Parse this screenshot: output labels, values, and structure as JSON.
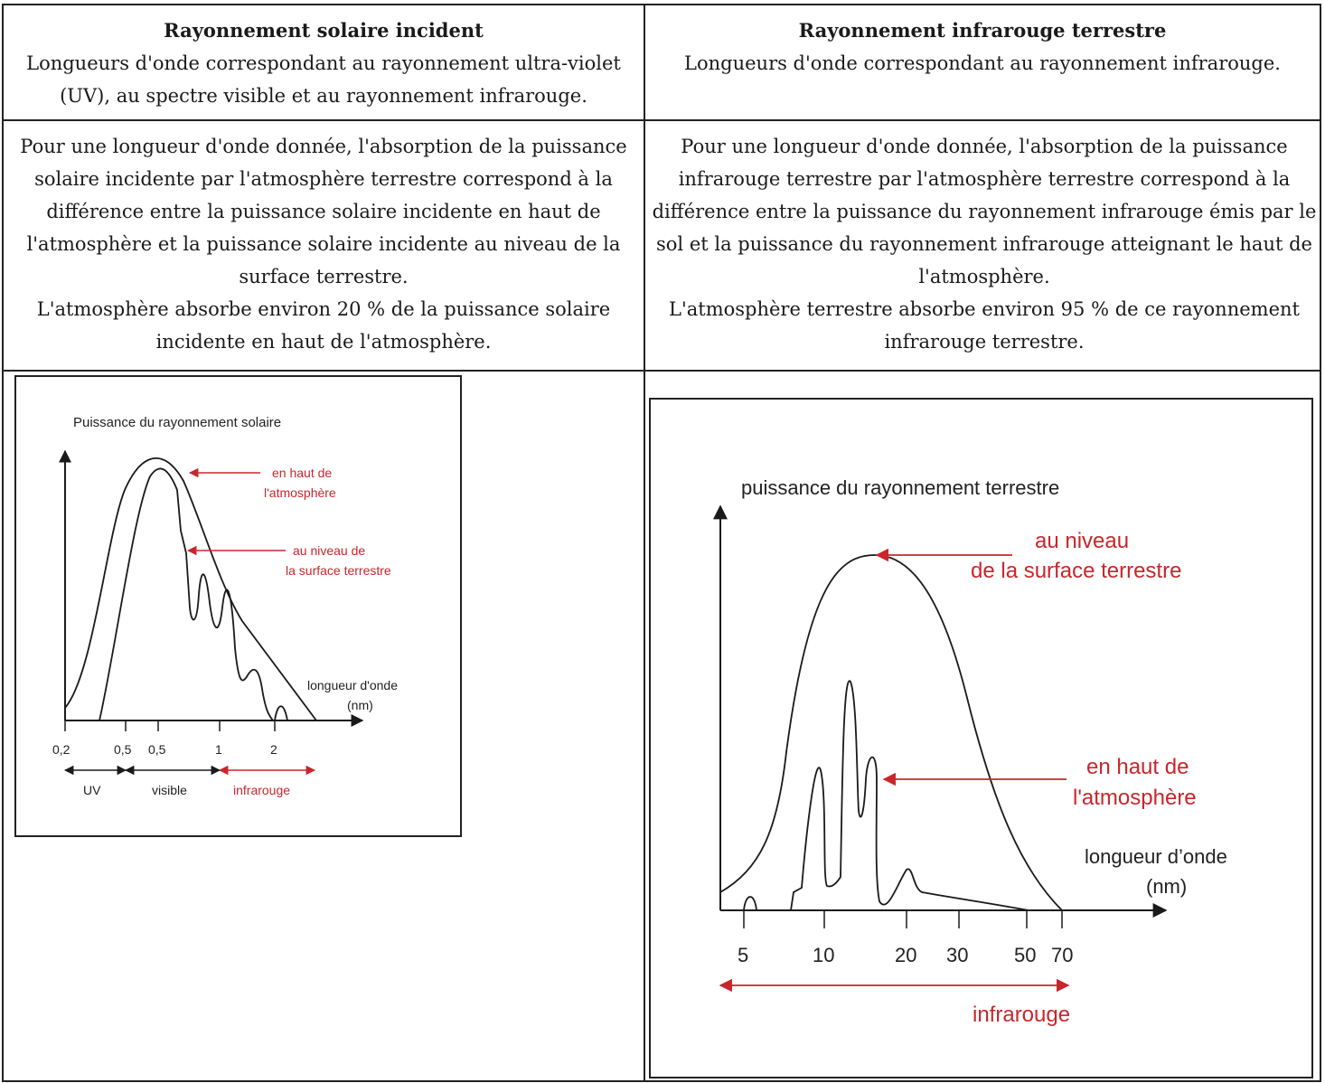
{
  "left_header": {
    "title": "Rayonnement solaire incident",
    "description": "Longueurs d'onde correspondant au rayonnement ultra-violet (UV), au spectre visible et au rayonnement infrarouge."
  },
  "right_header": {
    "title": "Rayonnement infrarouge terrestre",
    "description": "Longueurs d'onde correspondant au rayonnement infrarouge."
  },
  "left_body": {
    "paragraph1": "Pour une longueur d'onde donnée, l'absorption de la puissance solaire incidente par l'atmosphère terrestre correspond à la différence entre la puissance solaire incidente en haut de l'atmosphère et la puissance solaire incidente au niveau de la surface terrestre.",
    "paragraph2": "L'atmosphère absorbe environ 20 % de la puissance solaire incidente en haut de l'atmosphère."
  },
  "right_body": {
    "paragraph1": "Pour une longueur d'onde donnée, l'absorption de la puissance infrarouge terrestre par l'atmosphère terrestre correspond à la différence entre la puissance du rayonnement infrarouge émis par le sol et la puissance du rayonnement infrarouge atteignant le haut de l'atmosphère.",
    "paragraph2": "L'atmosphère terrestre absorbe environ 95 % de ce rayonnement infrarouge terrestre."
  },
  "colors": {
    "annotation": "#c8262b",
    "line": "#1a1a1a"
  },
  "chart_data": [
    {
      "type": "line",
      "ylabel": "Puissance du rayonnement solaire",
      "xlabel_line1": "longueur d'onde",
      "xlabel_line2": "(nm)",
      "tick_labels": [
        "0,2",
        "0,5",
        "0,5",
        "1",
        "2"
      ],
      "series": [
        {
          "name": "en haut de l'atmosphère"
        },
        {
          "name": "au niveau de la surface terrestre"
        }
      ],
      "annotations": {
        "top_line1": "en haut de",
        "top_line2": "l'atmosphère",
        "surface_line1": "au niveau de",
        "surface_line2": "la surface terrestre"
      },
      "bands": {
        "uv": "UV",
        "visible": "visible",
        "infrared": "infrarouge"
      }
    },
    {
      "type": "line",
      "ylabel": "puissance du rayonnement terrestre",
      "xlabel_line1": "longueur d’onde",
      "xlabel_line2": "(nm)",
      "tick_labels": [
        "5",
        "10",
        "20",
        "30",
        "50",
        "70"
      ],
      "series": [
        {
          "name": "au niveau de la surface terrestre"
        },
        {
          "name": "en haut de l'atmosphère"
        }
      ],
      "annotations": {
        "surface_line1": "au niveau",
        "surface_line2": "de la surface terrestre",
        "top_line1": "en haut de",
        "top_line2": "l'atmosphère"
      },
      "bands": {
        "infrared": "infrarouge"
      }
    }
  ]
}
